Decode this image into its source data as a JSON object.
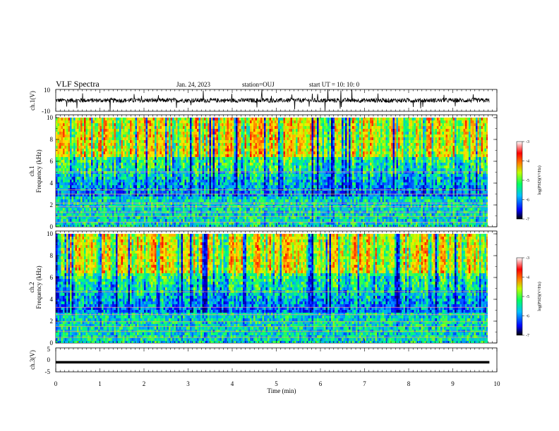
{
  "header": {
    "title": "VLF Spectra",
    "date": "Jan. 24, 2023",
    "station": "station=OUJ",
    "start": "start  UT  =   10: 10: 0"
  },
  "chart_data": [
    {
      "type": "line",
      "panel": "ch1-waveform",
      "ylabel": "ch.1(V)",
      "ylim": [
        -10,
        10
      ],
      "yticks": [
        "10",
        "-10"
      ],
      "note": "dense noisy waveform centred near 0 V with spikes to the axis limits"
    },
    {
      "type": "heatmap",
      "panel": "ch1-spectrogram",
      "ylabel": [
        "ch.1",
        "Frequency (kHz)"
      ],
      "ylim": [
        0,
        10
      ],
      "yticks": [
        "0",
        "2",
        "4",
        "6",
        "8",
        "10"
      ],
      "colorbar": {
        "label": "log(PSD)(V²/Hz)",
        "range": [
          -7,
          -3
        ],
        "ticks": [
          "-3",
          "-4",
          "-5",
          "-6",
          "-7"
        ]
      }
    },
    {
      "type": "heatmap",
      "panel": "ch2-spectrogram",
      "ylabel": [
        "ch.2",
        "Frequency (kHz)"
      ],
      "ylim": [
        0,
        10
      ],
      "yticks": [
        "0",
        "2",
        "4",
        "6",
        "8",
        "10"
      ],
      "colorbar": {
        "label": "log(PSD)(V²/Hz)",
        "range": [
          -7,
          -3
        ],
        "ticks": [
          "-3",
          "-4",
          "-5",
          "-6",
          "-7"
        ]
      }
    },
    {
      "type": "line",
      "panel": "ch3-waveform",
      "ylabel": "ch.3(V)",
      "ylim": [
        -5,
        5
      ],
      "yticks": [
        "5",
        "0",
        "-5"
      ],
      "value": -1
    }
  ],
  "xaxis": {
    "xlabel": "Time  (min)",
    "xlim": [
      0,
      10
    ],
    "ticks": [
      "0",
      "1",
      "2",
      "3",
      "4",
      "5",
      "6",
      "7",
      "8",
      "9",
      "10"
    ],
    "data_end": 9.83
  },
  "colors": {
    "scale": [
      "#000080",
      "#0000ff",
      "#0080ff",
      "#00ffff",
      "#00ff00",
      "#ffff00",
      "#ff8000",
      "#ff0000",
      "#ffffff"
    ]
  }
}
